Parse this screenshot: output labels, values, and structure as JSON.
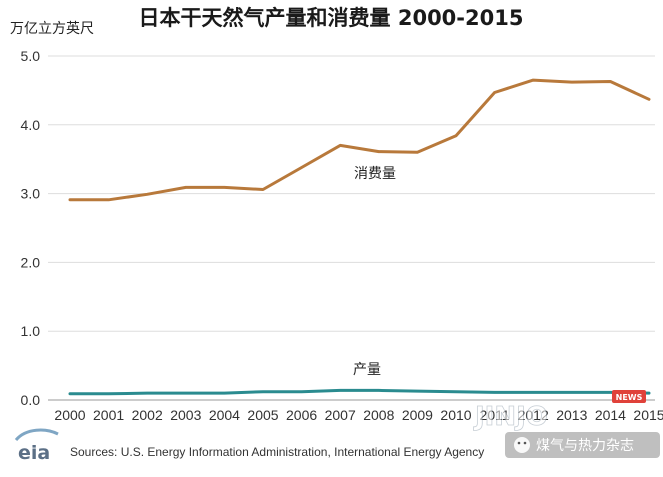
{
  "chart_data": {
    "type": "line",
    "title": "日本干天然气产量和消费量 2000-2015",
    "ylabel": "万亿立方英尺",
    "xlabel": "",
    "ylim": [
      0,
      5
    ],
    "yticks": [
      "0.0",
      "1.0",
      "2.0",
      "3.0",
      "4.0",
      "5.0"
    ],
    "grid": true,
    "x": [
      "2000",
      "2001",
      "2002",
      "2003",
      "2004",
      "2005",
      "2006",
      "2007",
      "2008",
      "2009",
      "2010",
      "2011",
      "2012",
      "2013",
      "2014",
      "2015"
    ],
    "series": [
      {
        "name": "消费量",
        "color": "#b8793b",
        "values": [
          2.91,
          2.91,
          2.99,
          3.09,
          3.09,
          3.06,
          3.38,
          3.7,
          3.61,
          3.6,
          3.84,
          4.47,
          4.65,
          4.62,
          4.63,
          4.37
        ]
      },
      {
        "name": "产量",
        "color": "#2a8b8f",
        "values": [
          0.09,
          0.09,
          0.1,
          0.1,
          0.1,
          0.12,
          0.12,
          0.14,
          0.14,
          0.13,
          0.12,
          0.11,
          0.11,
          0.11,
          0.11,
          0.1
        ]
      }
    ],
    "source": "Sources: U.S. Energy Information Administration, International Energy Agency"
  },
  "logo": {
    "text": "eia"
  },
  "watermark": {
    "text": "煤气与热力杂志",
    "site": "JINJO",
    "badge": "NEWS"
  }
}
